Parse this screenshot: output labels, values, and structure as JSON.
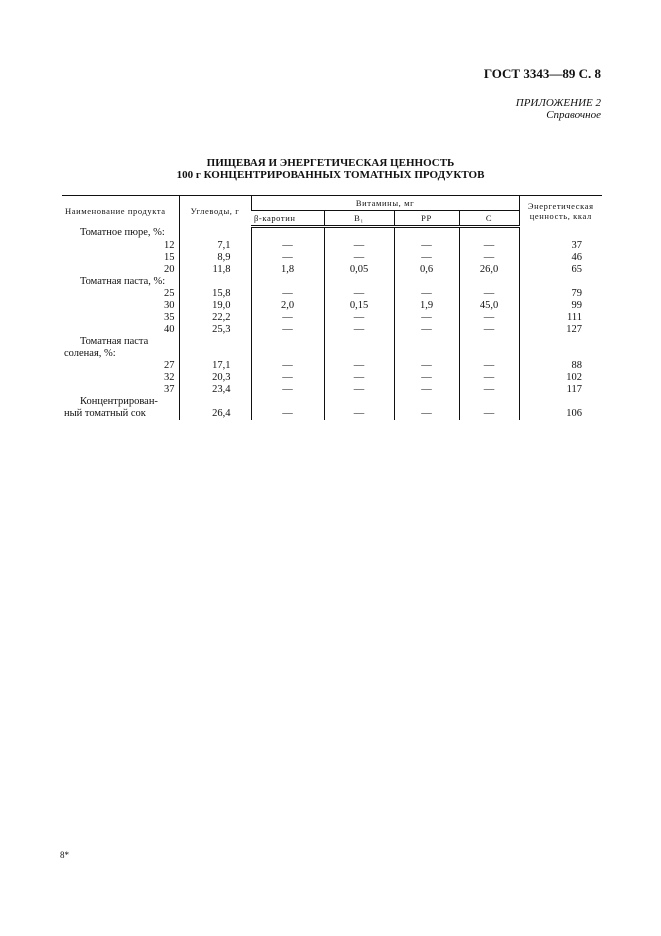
{
  "header": "ГОСТ 3343—89 С. 8",
  "appendix": {
    "label": "ПРИЛОЖЕНИЕ 2",
    "type": "Справочное"
  },
  "title": {
    "line1": "ПИЩЕВАЯ И ЭНЕРГЕТИЧЕСКАЯ ЦЕННОСТЬ",
    "line2": "100 г КОНЦЕНТРИРОВАННЫХ ТОМАТНЫХ ПРОДУКТОВ"
  },
  "table": {
    "headers": {
      "product": "Наименование продукта",
      "carbs": "Углеводы, г",
      "vitamins": "Витамины, мг",
      "beta": "β-каротин",
      "b1": "B₁",
      "pp": "PP",
      "c": "C",
      "energy": "Энергетическая ценность, ккал"
    },
    "rows": [
      {
        "type": "group",
        "label": "Томатное пюре, %:"
      },
      {
        "cells": [
          "12",
          "7,1",
          "—",
          "—",
          "—",
          "—",
          "37"
        ]
      },
      {
        "cells": [
          "15",
          "8,9",
          "—",
          "—",
          "—",
          "—",
          "46"
        ]
      },
      {
        "cells": [
          "20",
          "11,8",
          "1,8",
          "0,05",
          "0,6",
          "26,0",
          "65"
        ]
      },
      {
        "type": "group",
        "label": "Томатная паста, %:"
      },
      {
        "cells": [
          "25",
          "15,8",
          "—",
          "—",
          "—",
          "—",
          "79"
        ]
      },
      {
        "cells": [
          "30",
          "19,0",
          "2,0",
          "0,15",
          "1,9",
          "45,0",
          "99"
        ]
      },
      {
        "cells": [
          "35",
          "22,2",
          "—",
          "—",
          "—",
          "—",
          "111"
        ]
      },
      {
        "cells": [
          "40",
          "25,3",
          "—",
          "—",
          "—",
          "—",
          "127"
        ]
      },
      {
        "type": "group",
        "label": "Томатная паста"
      },
      {
        "type": "group2",
        "label": "соленая, %:"
      },
      {
        "cells": [
          "27",
          "17,1",
          "—",
          "—",
          "—",
          "—",
          "88"
        ]
      },
      {
        "cells": [
          "32",
          "20,3",
          "—",
          "—",
          "—",
          "—",
          "102"
        ]
      },
      {
        "cells": [
          "37",
          "23,4",
          "—",
          "—",
          "—",
          "—",
          "117"
        ]
      },
      {
        "type": "group",
        "label": "Концентрирован-"
      },
      {
        "type": "group2",
        "label": "ный томатный сок",
        "cells": [
          "",
          "26,4",
          "—",
          "—",
          "—",
          "—",
          "106"
        ]
      }
    ]
  },
  "footer": "8*"
}
